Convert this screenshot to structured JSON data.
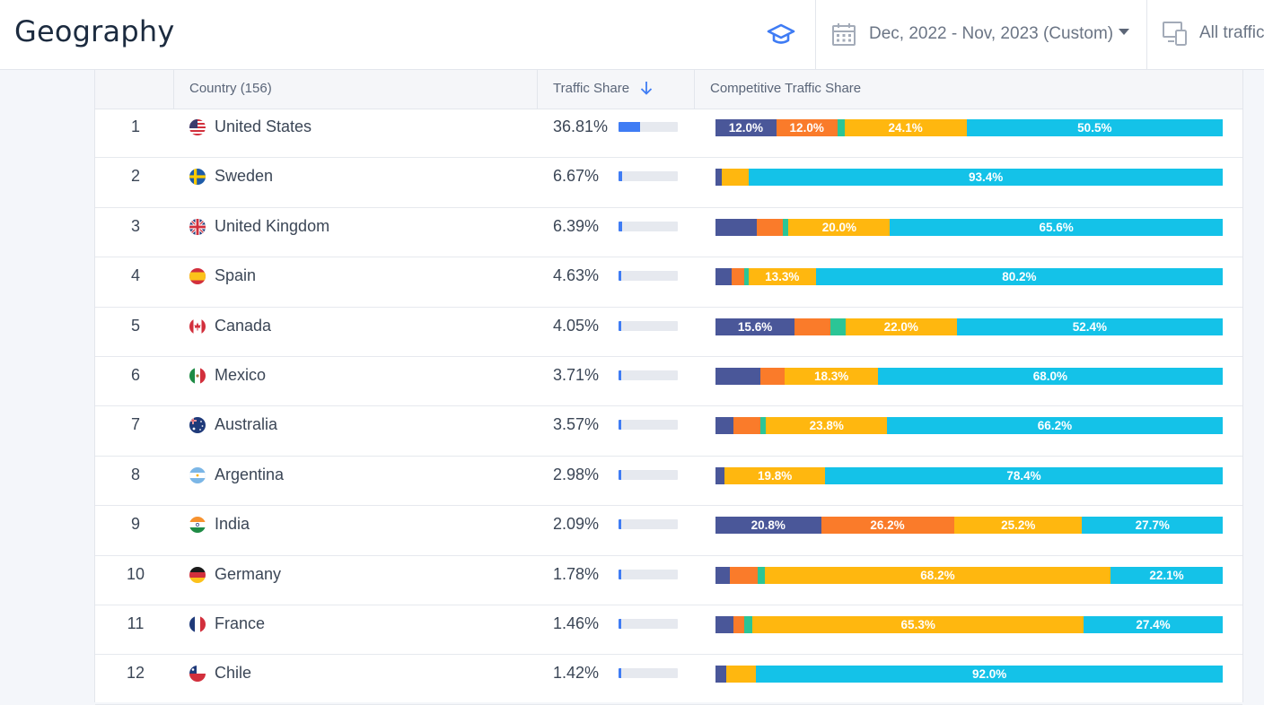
{
  "header": {
    "title": "Geography",
    "date_range": "Dec, 2022 - Nov, 2023 (Custom)",
    "traffic_filter": "All traffic"
  },
  "table": {
    "columns": {
      "country": "Country (156)",
      "traffic_share": "Traffic Share",
      "competitive": "Competitive Traffic Share"
    },
    "segment_colors": [
      "#4a5799",
      "#fa7b2a",
      "#2bc596",
      "#ffb70f",
      "#14c2e8"
    ],
    "rows": [
      {
        "rank": "1",
        "country": "United States",
        "share": "36.81%",
        "share_value": 36.81,
        "flag": "us-flag-icon",
        "segments": [
          12.0,
          12.0,
          1.4,
          24.1,
          50.5
        ],
        "labels": [
          "12.0%",
          "12.0%",
          "",
          "24.1%",
          "50.5%"
        ]
      },
      {
        "rank": "2",
        "country": "Sweden",
        "share": "6.67%",
        "share_value": 6.67,
        "flag": "se-flag-icon",
        "segments": [
          1.3,
          0,
          0,
          5.3,
          93.4
        ],
        "labels": [
          "",
          "",
          "",
          "",
          "93.4%"
        ]
      },
      {
        "rank": "3",
        "country": "United Kingdom",
        "share": "6.39%",
        "share_value": 6.39,
        "flag": "gb-flag-icon",
        "segments": [
          8.2,
          5.1,
          1.1,
          20.0,
          65.6
        ],
        "labels": [
          "",
          "",
          "",
          "20.0%",
          "65.6%"
        ]
      },
      {
        "rank": "4",
        "country": "Spain",
        "share": "4.63%",
        "share_value": 4.63,
        "flag": "es-flag-icon",
        "segments": [
          3.2,
          2.5,
          0.8,
          13.3,
          80.2
        ],
        "labels": [
          "",
          "",
          "",
          "13.3%",
          "80.2%"
        ]
      },
      {
        "rank": "5",
        "country": "Canada",
        "share": "4.05%",
        "share_value": 4.05,
        "flag": "ca-flag-icon",
        "segments": [
          15.6,
          7.0,
          3.0,
          22.0,
          52.4
        ],
        "labels": [
          "15.6%",
          "",
          "",
          "22.0%",
          "52.4%"
        ]
      },
      {
        "rank": "6",
        "country": "Mexico",
        "share": "3.71%",
        "share_value": 3.71,
        "flag": "mx-flag-icon",
        "segments": [
          8.8,
          4.9,
          0,
          18.3,
          68.0
        ],
        "labels": [
          "",
          "",
          "",
          "18.3%",
          "68.0%"
        ]
      },
      {
        "rank": "7",
        "country": "Australia",
        "share": "3.57%",
        "share_value": 3.57,
        "flag": "au-flag-icon",
        "segments": [
          3.5,
          5.3,
          1.2,
          23.8,
          66.2
        ],
        "labels": [
          "",
          "",
          "",
          "23.8%",
          "66.2%"
        ]
      },
      {
        "rank": "8",
        "country": "Argentina",
        "share": "2.98%",
        "share_value": 2.98,
        "flag": "ar-flag-icon",
        "segments": [
          1.8,
          0,
          0,
          19.8,
          78.4
        ],
        "labels": [
          "",
          "",
          "",
          "19.8%",
          "78.4%"
        ]
      },
      {
        "rank": "9",
        "country": "India",
        "share": "2.09%",
        "share_value": 2.09,
        "flag": "in-flag-icon",
        "segments": [
          20.8,
          26.2,
          0.1,
          25.2,
          27.7
        ],
        "labels": [
          "20.8%",
          "26.2%",
          "",
          "25.2%",
          "27.7%"
        ]
      },
      {
        "rank": "10",
        "country": "Germany",
        "share": "1.78%",
        "share_value": 1.78,
        "flag": "de-flag-icon",
        "segments": [
          2.8,
          5.6,
          1.3,
          68.2,
          22.1
        ],
        "labels": [
          "",
          "",
          "",
          "68.2%",
          "22.1%"
        ]
      },
      {
        "rank": "11",
        "country": "France",
        "share": "1.46%",
        "share_value": 1.46,
        "flag": "fr-flag-icon",
        "segments": [
          3.6,
          2.1,
          1.6,
          65.3,
          27.4
        ],
        "labels": [
          "",
          "",
          "",
          "65.3%",
          "27.4%"
        ]
      },
      {
        "rank": "12",
        "country": "Chile",
        "share": "1.42%",
        "share_value": 1.42,
        "flag": "cl-flag-icon",
        "segments": [
          2.1,
          0,
          0,
          5.9,
          92.0
        ],
        "labels": [
          "",
          "",
          "",
          "",
          "92.0%"
        ]
      }
    ]
  }
}
